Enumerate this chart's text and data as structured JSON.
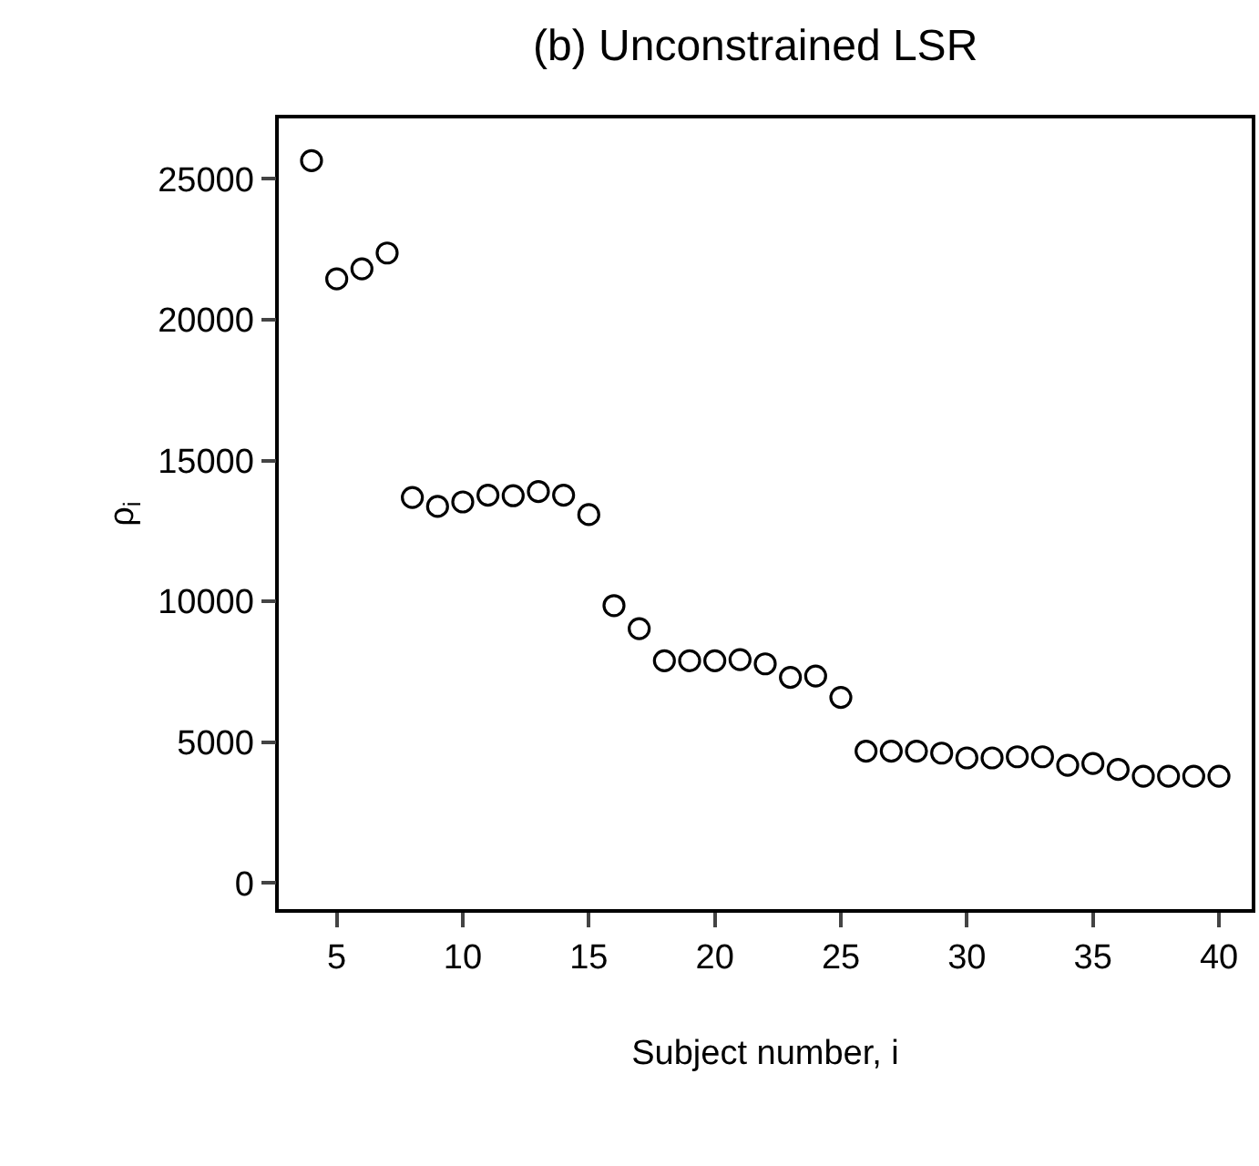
{
  "chart_data": {
    "type": "scatter",
    "title": "(b) Unconstrained LSR",
    "xlabel": "Subject number, i",
    "ylabel": "ρ$_{i}$",
    "x": [
      4,
      5,
      6,
      7,
      8,
      9,
      10,
      11,
      12,
      13,
      14,
      15,
      16,
      17,
      18,
      19,
      20,
      21,
      22,
      23,
      24,
      25,
      26,
      27,
      28,
      29,
      30,
      31,
      32,
      33,
      34,
      35,
      36,
      37,
      38,
      39,
      40
    ],
    "series": [
      {
        "color": "#000000",
        "values": [
          25650,
          21450,
          21810,
          22370,
          13690,
          13370,
          13530,
          13770,
          13750,
          13900,
          13770,
          13080,
          9850,
          9030,
          7890,
          7890,
          7890,
          7930,
          7780,
          7300,
          7350,
          6590,
          4680,
          4680,
          4680,
          4610,
          4440,
          4440,
          4480,
          4480,
          4180,
          4240,
          4030,
          3790,
          3790,
          3790,
          3790
        ]
      }
    ],
    "xlim": [
      2.7,
      41.3
    ],
    "ylim": [
      -930,
      27150
    ],
    "xticks": [
      5,
      10,
      15,
      20,
      25,
      30,
      35,
      40
    ],
    "yticks": [
      0,
      5000,
      10000,
      15000,
      20000,
      25000
    ],
    "marker": "circle"
  }
}
